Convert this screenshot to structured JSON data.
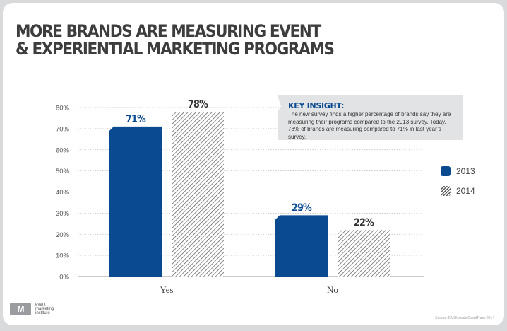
{
  "title_lines": [
    "MORE BRANDS ARE MEASURING EVENT",
    "& EXPERIENTIAL MARKETING PROGRAMS"
  ],
  "insight": {
    "title": "KEY INSIGHT:",
    "body": "The new survey finds a higher percentage of brands say they are measuring their programs compared to the 2013 survey. Today, 78% of brands are measuring compared to 71% in last year’s survey."
  },
  "logos": {
    "mosaic": "M",
    "emi": "event marketing institute"
  },
  "source": "Source: EMI/Mosaic EventTrack 2014",
  "colors": {
    "series_2013": "#0a4a91",
    "hatch": "#555555",
    "grid": "#bbbbbb",
    "text": "#444444"
  },
  "chart_data": {
    "type": "bar",
    "categories": [
      "Yes",
      "No"
    ],
    "series": [
      {
        "name": "2013",
        "values": [
          71,
          29
        ],
        "labels": [
          "71%",
          "29%"
        ],
        "style": "solid"
      },
      {
        "name": "2014",
        "values": [
          78,
          22
        ],
        "labels": [
          "78%",
          "22%"
        ],
        "style": "hatched"
      }
    ],
    "ylim": [
      0,
      80
    ],
    "yticks": [
      "0%",
      "10%",
      "20%",
      "30%",
      "40%",
      "50%",
      "60%",
      "70%",
      "80%"
    ],
    "legend": "right",
    "grid": true
  }
}
